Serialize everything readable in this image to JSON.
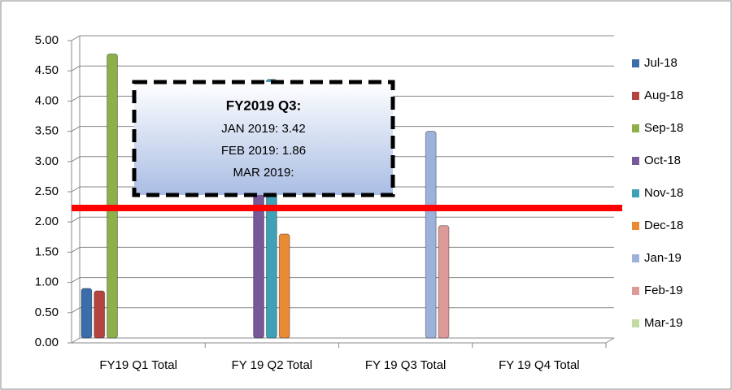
{
  "chart_data": {
    "type": "bar",
    "categories": [
      "FY19 Q1 Total",
      "FY 19 Q2 Total",
      "FY 19 Q3 Total",
      "FY 19 Q4 Total"
    ],
    "series": [
      {
        "name": "Jul-18",
        "color": "#3b6ea8",
        "values": [
          0.82,
          null,
          null,
          null
        ]
      },
      {
        "name": "Aug-18",
        "color": "#b5443f",
        "values": [
          0.78,
          null,
          null,
          null
        ]
      },
      {
        "name": "Sep-18",
        "color": "#8db04a",
        "values": [
          4.7,
          null,
          null,
          null
        ]
      },
      {
        "name": "Oct-18",
        "color": "#77589a",
        "values": [
          null,
          2.6,
          null,
          null
        ]
      },
      {
        "name": "Nov-18",
        "color": "#3ea1b7",
        "values": [
          null,
          4.28,
          null,
          null
        ]
      },
      {
        "name": "Dec-18",
        "color": "#e98a34",
        "values": [
          null,
          1.72,
          null,
          null
        ]
      },
      {
        "name": "Jan-19",
        "color": "#9db2da",
        "values": [
          null,
          null,
          3.42,
          null
        ]
      },
      {
        "name": "Feb-19",
        "color": "#dc9b98",
        "values": [
          null,
          null,
          1.86,
          null
        ]
      },
      {
        "name": "Mar-19",
        "color": "#c3dca2",
        "values": [
          null,
          null,
          null,
          null
        ]
      }
    ],
    "ylim": [
      0,
      5
    ],
    "yticks": [
      {
        "value": 0,
        "label": "0.00"
      },
      {
        "value": 0.5,
        "label": "0.50"
      },
      {
        "value": 1,
        "label": "1.00"
      },
      {
        "value": 1.5,
        "label": "1.50"
      },
      {
        "value": 2,
        "label": "2.00"
      },
      {
        "value": 2.5,
        "label": "2.50"
      },
      {
        "value": 3,
        "label": "3.00"
      },
      {
        "value": 3.5,
        "label": "3.50"
      },
      {
        "value": 4,
        "label": "4.00"
      },
      {
        "value": 4.5,
        "label": "4.50"
      },
      {
        "value": 5,
        "label": "5.00"
      }
    ],
    "grid": true,
    "legend": "right",
    "reference_line": {
      "value": 2.15,
      "color": "#ff0000"
    },
    "annotation": {
      "title": "FY2019 Q3:",
      "lines": [
        "JAN 2019: 3.42",
        "FEB 2019: 1.86",
        "MAR 2019:"
      ]
    }
  }
}
